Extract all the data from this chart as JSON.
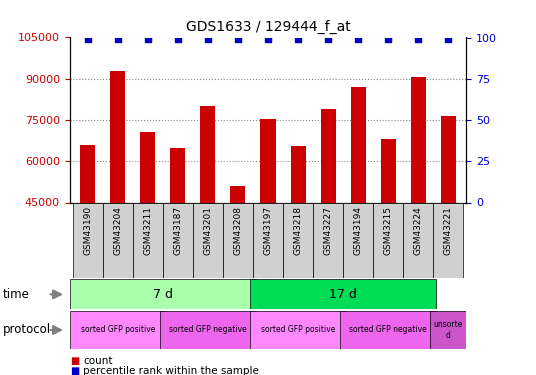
{
  "title": "GDS1633 / 129444_f_at",
  "samples": [
    "GSM43190",
    "GSM43204",
    "GSM43211",
    "GSM43187",
    "GSM43201",
    "GSM43208",
    "GSM43197",
    "GSM43218",
    "GSM43227",
    "GSM43194",
    "GSM43215",
    "GSM43224",
    "GSM43221"
  ],
  "counts": [
    66000,
    93000,
    70500,
    65000,
    80000,
    51000,
    75500,
    65500,
    79000,
    87000,
    68000,
    90500,
    76500
  ],
  "ylim_left": [
    45000,
    105000
  ],
  "ylim_right": [
    0,
    100
  ],
  "yticks_left": [
    45000,
    60000,
    75000,
    90000,
    105000
  ],
  "yticks_right": [
    0,
    25,
    50,
    75,
    100
  ],
  "bar_color": "#cc0000",
  "scatter_color": "#0000cc",
  "grid_color": "#888888",
  "time_groups": [
    {
      "label": "7 d",
      "start": 0,
      "end": 6,
      "color": "#aaffaa"
    },
    {
      "label": "17 d",
      "start": 6,
      "end": 12,
      "color": "#00dd55"
    }
  ],
  "protocol_groups": [
    {
      "label": "sorted GFP positive",
      "start": 0,
      "end": 3,
      "color": "#ff88ff"
    },
    {
      "label": "sorted GFP negative",
      "start": 3,
      "end": 6,
      "color": "#ee66ee"
    },
    {
      "label": "sorted GFP positive",
      "start": 6,
      "end": 9,
      "color": "#ff88ff"
    },
    {
      "label": "sorted GFP negative",
      "start": 9,
      "end": 12,
      "color": "#ee66ee"
    },
    {
      "label": "unsorte\nd",
      "start": 12,
      "end": 13,
      "color": "#cc55cc"
    }
  ],
  "legend_count_color": "#cc0000",
  "legend_percentile_color": "#0000cc",
  "tick_color_left": "#cc0000",
  "tick_color_right": "#0000cc",
  "sample_box_color": "#d0d0d0",
  "arrow_color": "#808080"
}
